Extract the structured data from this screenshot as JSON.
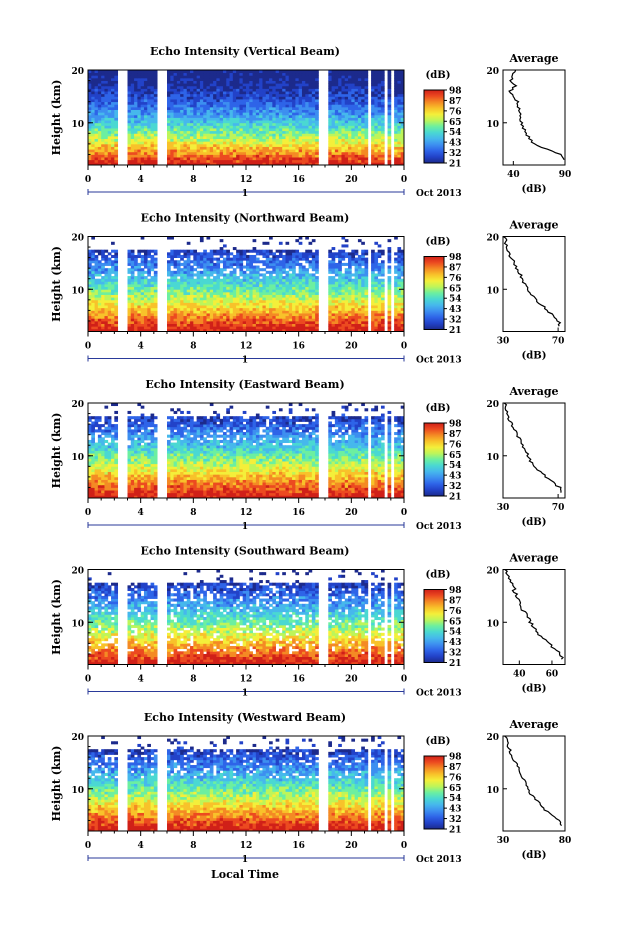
{
  "figure": {
    "xlabel_bottom": "Local Time",
    "date_label": "Oct 2013",
    "day_label": "1"
  },
  "colorscale": {
    "unit_label": "(dB)",
    "colors": [
      "#1c2a8c",
      "#2242c8",
      "#2e64e8",
      "#3d8ff0",
      "#46b8ec",
      "#4ad8d2",
      "#6cefa0",
      "#bdf55a",
      "#f4ef3a",
      "#f8c22a",
      "#f48a24",
      "#ec4a20",
      "#d02018"
    ]
  },
  "chart_data": [
    {
      "type": "heatmap",
      "title": "Echo Intensity (Vertical Beam)",
      "xlabel": "",
      "ylabel": "Height (km)",
      "xlim": [
        0,
        24
      ],
      "ylim": [
        2,
        20
      ],
      "xticks": [
        "0",
        "4",
        "8",
        "12",
        "16",
        "20",
        "0"
      ],
      "yticks": [
        "10",
        "20"
      ],
      "gaps_hours": [
        [
          2.3,
          2.9
        ],
        [
          5.3,
          6.0
        ],
        [
          17.6,
          18.2
        ],
        [
          21.2,
          21.5
        ],
        [
          21.9,
          22.1
        ],
        [
          22.5,
          22.7
        ],
        [
          23.1,
          23.3
        ]
      ],
      "colorbar_ticks": [
        "98",
        "87",
        "76",
        "65",
        "54",
        "43",
        "32",
        "21"
      ],
      "profile": {
        "title": "Average",
        "xlabel": "(dB)",
        "ylabel": "",
        "xlim": [
          30,
          90
        ],
        "xticks": [
          "40",
          "90"
        ],
        "ylim": [
          2,
          20
        ],
        "yticks": [
          "10",
          "20"
        ],
        "heights": [
          3,
          4,
          5,
          6,
          7,
          8,
          9,
          10,
          11,
          12,
          13,
          14,
          15,
          16,
          17,
          18,
          19,
          20
        ],
        "values": [
          88,
          86,
          72,
          60,
          56,
          52,
          50,
          48,
          47,
          46,
          45,
          44,
          40,
          37,
          42,
          38,
          40,
          41
        ]
      }
    },
    {
      "type": "heatmap",
      "title": "Echo Intensity (Northward Beam)",
      "xlabel": "",
      "ylabel": "Height (km)",
      "xlim": [
        0,
        24
      ],
      "ylim": [
        2,
        20
      ],
      "xticks": [
        "0",
        "4",
        "8",
        "12",
        "16",
        "20",
        "0"
      ],
      "yticks": [
        "10",
        "20"
      ],
      "gaps_hours": [
        [
          2.3,
          2.9
        ],
        [
          5.3,
          6.0
        ],
        [
          17.6,
          18.2
        ],
        [
          21.2,
          21.5
        ],
        [
          21.9,
          22.1
        ],
        [
          22.5,
          22.7
        ],
        [
          23.1,
          23.3
        ]
      ],
      "colorbar_ticks": [
        "98",
        "87",
        "76",
        "65",
        "54",
        "43",
        "32",
        "21"
      ],
      "profile": {
        "title": "Average",
        "xlabel": "(dB)",
        "ylabel": "",
        "xlim": [
          30,
          75
        ],
        "xticks": [
          "30",
          "70"
        ],
        "ylim": [
          2,
          20
        ],
        "yticks": [
          "10",
          "20"
        ],
        "heights": [
          3,
          4,
          5,
          6,
          7,
          8,
          9,
          10,
          11,
          12,
          13,
          14,
          15,
          16,
          17,
          18,
          19,
          20
        ],
        "values": [
          72,
          70,
          66,
          62,
          58,
          54,
          50,
          48,
          46,
          44,
          42,
          40,
          38,
          36,
          34,
          33,
          32,
          31
        ]
      }
    },
    {
      "type": "heatmap",
      "title": "Echo Intensity (Eastward Beam)",
      "xlabel": "",
      "ylabel": "Height (km)",
      "xlim": [
        0,
        24
      ],
      "ylim": [
        2,
        20
      ],
      "xticks": [
        "0",
        "4",
        "8",
        "12",
        "16",
        "20",
        "0"
      ],
      "yticks": [
        "10",
        "20"
      ],
      "gaps_hours": [
        [
          2.3,
          2.9
        ],
        [
          5.3,
          6.0
        ],
        [
          17.6,
          18.2
        ],
        [
          21.2,
          21.5
        ],
        [
          21.9,
          22.1
        ],
        [
          22.5,
          22.7
        ],
        [
          23.1,
          23.3
        ]
      ],
      "colorbar_ticks": [
        "98",
        "87",
        "76",
        "65",
        "54",
        "43",
        "32",
        "21"
      ],
      "profile": {
        "title": "Average",
        "xlabel": "(dB)",
        "ylabel": "",
        "xlim": [
          30,
          75
        ],
        "xticks": [
          "30",
          "70"
        ],
        "ylim": [
          2,
          20
        ],
        "yticks": [
          "10",
          "20"
        ],
        "heights": [
          3,
          4,
          5,
          6,
          7,
          8,
          9,
          10,
          11,
          12,
          13,
          14,
          15,
          16,
          17,
          18,
          19,
          20
        ],
        "values": [
          73,
          71,
          66,
          61,
          57,
          53,
          50,
          48,
          46,
          44,
          42,
          40,
          38,
          36,
          34,
          33,
          32,
          31
        ]
      }
    },
    {
      "type": "heatmap",
      "title": "Echo Intensity (Southward Beam)",
      "xlabel": "",
      "ylabel": "Height (km)",
      "xlim": [
        0,
        24
      ],
      "ylim": [
        2,
        20
      ],
      "xticks": [
        "0",
        "4",
        "8",
        "12",
        "16",
        "20",
        "0"
      ],
      "yticks": [
        "10",
        "20"
      ],
      "gaps_hours": [
        [
          2.3,
          2.9
        ],
        [
          5.3,
          6.0
        ],
        [
          17.6,
          18.2
        ],
        [
          21.2,
          21.5
        ],
        [
          21.9,
          22.1
        ],
        [
          22.5,
          22.7
        ],
        [
          23.1,
          23.3
        ]
      ],
      "colorbar_ticks": [
        "98",
        "87",
        "76",
        "65",
        "54",
        "43",
        "32",
        "21"
      ],
      "profile": {
        "title": "Average",
        "xlabel": "(dB)",
        "ylabel": "",
        "xlim": [
          30,
          68
        ],
        "xticks": [
          "40",
          "60"
        ],
        "ylim": [
          2,
          20
        ],
        "yticks": [
          "10",
          "20"
        ],
        "heights": [
          3,
          4,
          5,
          6,
          7,
          8,
          9,
          10,
          11,
          12,
          13,
          14,
          15,
          16,
          17,
          18,
          19,
          20
        ],
        "values": [
          66,
          65,
          62,
          58,
          55,
          51,
          49,
          47,
          45,
          43,
          41,
          40,
          38,
          37,
          36,
          34,
          33,
          32
        ]
      }
    },
    {
      "type": "heatmap",
      "title": "Echo Intensity (Westward Beam)",
      "xlabel": "",
      "ylabel": "Height (km)",
      "xlim": [
        0,
        24
      ],
      "ylim": [
        2,
        20
      ],
      "xticks": [
        "0",
        "4",
        "8",
        "12",
        "16",
        "20",
        "0"
      ],
      "yticks": [
        "10",
        "20"
      ],
      "gaps_hours": [
        [
          2.3,
          2.9
        ],
        [
          5.3,
          6.0
        ],
        [
          17.6,
          18.2
        ],
        [
          21.2,
          21.5
        ],
        [
          21.9,
          22.1
        ],
        [
          22.5,
          22.7
        ],
        [
          23.1,
          23.3
        ]
      ],
      "colorbar_ticks": [
        "98",
        "87",
        "76",
        "65",
        "54",
        "43",
        "32",
        "21"
      ],
      "profile": {
        "title": "Average",
        "xlabel": "(dB)",
        "ylabel": "",
        "xlim": [
          30,
          80
        ],
        "xticks": [
          "30",
          "80"
        ],
        "ylim": [
          2,
          20
        ],
        "yticks": [
          "10",
          "20"
        ],
        "heights": [
          3,
          4,
          5,
          6,
          7,
          8,
          9,
          10,
          11,
          12,
          13,
          14,
          15,
          16,
          17,
          18,
          19,
          20
        ],
        "values": [
          78,
          75,
          70,
          64,
          60,
          56,
          52,
          50,
          48,
          46,
          44,
          42,
          40,
          38,
          36,
          34,
          33,
          32
        ]
      }
    }
  ]
}
